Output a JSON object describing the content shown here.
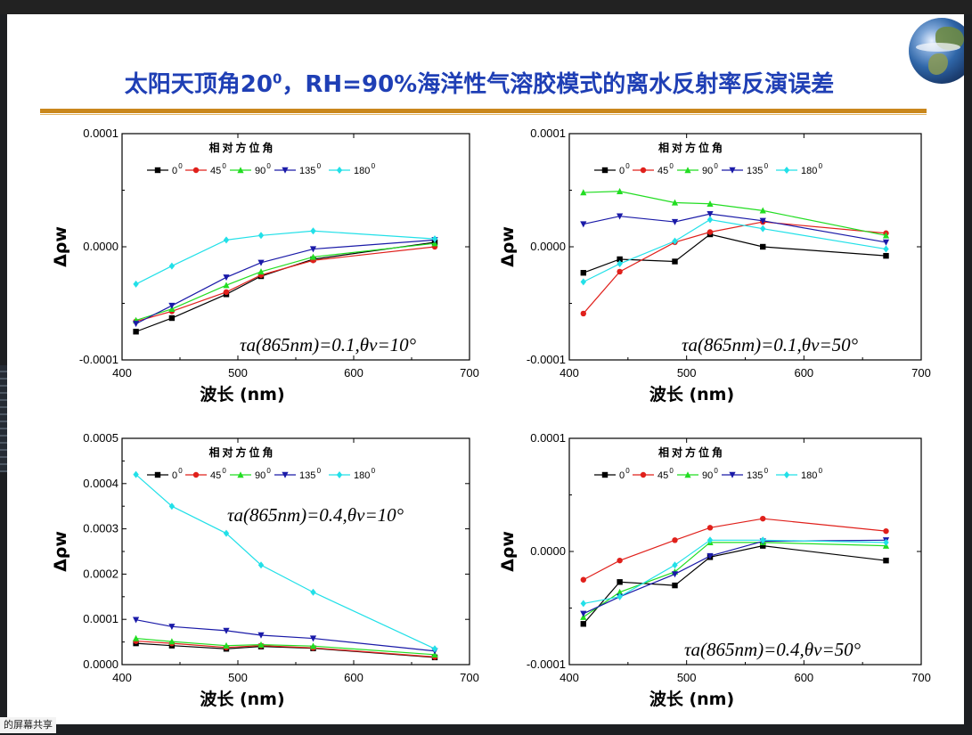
{
  "slide": {
    "title_part1": "太阳天顶角20",
    "title_sup": "0",
    "title_part2": "，RH=90%海洋性气溶胶模式的离水反射率反演误差"
  },
  "taskbar": {
    "share_label": "的屏幕共享"
  },
  "legend_title": "相对方位角",
  "series_style": [
    {
      "name": "0",
      "color": "#000000",
      "marker": "square"
    },
    {
      "name": "45",
      "color": "#e0201b",
      "marker": "circle"
    },
    {
      "name": "90",
      "color": "#22dd22",
      "marker": "triangle"
    },
    {
      "name": "135",
      "color": "#1a1aa8",
      "marker": "triangle-down"
    },
    {
      "name": "180",
      "color": "#22e0e8",
      "marker": "diamond"
    }
  ],
  "chart_data": [
    {
      "type": "line",
      "xlabel": "波长 (nm)",
      "ylabel": "Δρw",
      "xlim": [
        400,
        700
      ],
      "xticks": [
        "400",
        "500",
        "600",
        "700"
      ],
      "ylim": [
        -0.0001,
        0.0001
      ],
      "yticks": [
        "-0.0001",
        "0.0000",
        "0.0001"
      ],
      "annotation": "τa(865nm)=0.1,θv=10°",
      "x": [
        412,
        443,
        490,
        520,
        565,
        670
      ],
      "series": [
        {
          "name": "0",
          "values": [
            -7.5e-05,
            -6.3e-05,
            -4.2e-05,
            -2.6e-05,
            -1.1e-05,
            4e-06
          ]
        },
        {
          "name": "45",
          "values": [
            -6.6e-05,
            -5.7e-05,
            -4e-05,
            -2.5e-05,
            -1.2e-05,
            0.0
          ]
        },
        {
          "name": "90",
          "values": [
            -6.5e-05,
            -5.5e-05,
            -3.4e-05,
            -2.2e-05,
            -9e-06,
            3e-06
          ]
        },
        {
          "name": "135",
          "values": [
            -6.8e-05,
            -5.2e-05,
            -2.7e-05,
            -1.4e-05,
            -2e-06,
            6e-06
          ]
        },
        {
          "name": "180",
          "values": [
            -3.3e-05,
            -1.7e-05,
            6e-06,
            1e-05,
            1.4e-05,
            7e-06
          ]
        }
      ]
    },
    {
      "type": "line",
      "xlabel": "波长 (nm)",
      "ylabel": "Δρw",
      "xlim": [
        400,
        700
      ],
      "xticks": [
        "400",
        "500",
        "600",
        "700"
      ],
      "ylim": [
        -0.0001,
        0.0001
      ],
      "yticks": [
        "-0.0001",
        "0.0000",
        "0.0001"
      ],
      "annotation": "τa(865nm)=0.1,θv=50°",
      "x": [
        412,
        443,
        490,
        520,
        565,
        670
      ],
      "series": [
        {
          "name": "0",
          "values": [
            -2.3e-05,
            -1.1e-05,
            -1.3e-05,
            1.1e-05,
            0.0,
            -8e-06
          ]
        },
        {
          "name": "45",
          "values": [
            -5.9e-05,
            -2.2e-05,
            4e-06,
            1.3e-05,
            2.2e-05,
            1.2e-05
          ]
        },
        {
          "name": "90",
          "values": [
            4.8e-05,
            4.9e-05,
            3.9e-05,
            3.8e-05,
            3.2e-05,
            1e-05
          ]
        },
        {
          "name": "135",
          "values": [
            2e-05,
            2.7e-05,
            2.2e-05,
            2.9e-05,
            2.3e-05,
            4e-06
          ]
        },
        {
          "name": "180",
          "values": [
            -3.1e-05,
            -1.5e-05,
            5e-06,
            2.4e-05,
            1.6e-05,
            -2e-06
          ]
        }
      ]
    },
    {
      "type": "line",
      "xlabel": "波长 (nm)",
      "ylabel": "Δρw",
      "xlim": [
        400,
        700
      ],
      "xticks": [
        "400",
        "500",
        "600",
        "700"
      ],
      "ylim": [
        0,
        0.0005
      ],
      "yticks": [
        "0.0000",
        "0.0001",
        "0.0002",
        "0.0003",
        "0.0004",
        "0.0005"
      ],
      "annotation": "τa(865nm)=0.4,θv=10°",
      "x": [
        412,
        443,
        490,
        520,
        565,
        670
      ],
      "series": [
        {
          "name": "0",
          "values": [
            4.7e-05,
            4.2e-05,
            3.5e-05,
            4e-05,
            3.6e-05,
            1.6e-05
          ]
        },
        {
          "name": "45",
          "values": [
            5.2e-05,
            4.7e-05,
            3.8e-05,
            4.2e-05,
            3.7e-05,
            1.7e-05
          ]
        },
        {
          "name": "90",
          "values": [
            5.8e-05,
            5.1e-05,
            4.2e-05,
            4.4e-05,
            4.1e-05,
            2.2e-05
          ]
        },
        {
          "name": "135",
          "values": [
            9.9e-05,
            8.4e-05,
            7.5e-05,
            6.5e-05,
            5.8e-05,
            3e-05
          ]
        },
        {
          "name": "180",
          "values": [
            0.00042,
            0.00035,
            0.00029,
            0.00022,
            0.00016,
            3.5e-05
          ]
        }
      ]
    },
    {
      "type": "line",
      "xlabel": "波长 (nm)",
      "ylabel": "Δρw",
      "xlim": [
        400,
        700
      ],
      "xticks": [
        "400",
        "500",
        "600",
        "700"
      ],
      "ylim": [
        -0.0001,
        0.0001
      ],
      "yticks": [
        "-0.0001",
        "0.0000",
        "0.0001"
      ],
      "annotation": "τa(865nm)=0.4,θv=50°",
      "x": [
        412,
        443,
        490,
        520,
        565,
        670
      ],
      "series": [
        {
          "name": "0",
          "values": [
            -6.4e-05,
            -2.7e-05,
            -3e-05,
            -5e-06,
            5e-06,
            -8e-06
          ]
        },
        {
          "name": "45",
          "values": [
            -2.5e-05,
            -8e-06,
            1e-05,
            2.1e-05,
            2.9e-05,
            1.8e-05
          ]
        },
        {
          "name": "90",
          "values": [
            -5.8e-05,
            -3.6e-05,
            -1.8e-05,
            8e-06,
            8e-06,
            5e-06
          ]
        },
        {
          "name": "135",
          "values": [
            -5.5e-05,
            -4e-05,
            -2e-05,
            -4e-06,
            9e-06,
            1e-05
          ]
        },
        {
          "name": "180",
          "values": [
            -4.6e-05,
            -4e-05,
            -1.2e-05,
            1e-05,
            1e-05,
            8e-06
          ]
        }
      ]
    }
  ]
}
